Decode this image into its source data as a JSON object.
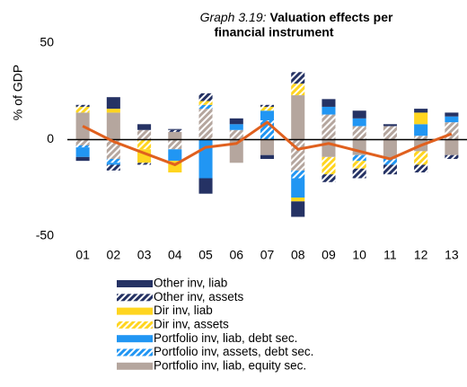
{
  "chart_data": {
    "type": "stacked_bar_line",
    "title_prefix": "Graph 3.19:",
    "title": "Valuation effects per financial instrument",
    "y_label": "% of GDP",
    "categories": [
      "01",
      "02",
      "03",
      "04",
      "05",
      "06",
      "07",
      "08",
      "09",
      "10",
      "11",
      "12",
      "13"
    ],
    "ylim": [
      -50,
      50
    ],
    "yticks": [
      -50,
      0,
      50
    ],
    "series": [
      {
        "color": "#b5a69e",
        "hatch": false,
        "values": [
          14,
          14,
          0,
          4,
          0,
          -12,
          -8,
          23,
          -9,
          -8,
          -10,
          -6,
          -8
        ]
      },
      {
        "color": "#b5a69e",
        "hatch": true,
        "values": [
          -3,
          -10,
          5,
          -5,
          16,
          5,
          0,
          -16,
          13,
          7,
          7,
          2,
          9
        ]
      },
      {
        "name": "Portfolio inv, assets, debt sec.",
        "color": "#2196f3",
        "hatch": true,
        "values": [
          -1,
          -2,
          0,
          0,
          2,
          0,
          10,
          -4,
          0,
          -3,
          -3,
          0,
          0
        ]
      },
      {
        "name": "Portfolio inv, liab, debt sec.",
        "color": "#2196f3",
        "hatch": false,
        "values": [
          -5,
          -1,
          0,
          -6,
          -20,
          3,
          5,
          -10,
          4,
          4,
          0,
          6,
          3
        ]
      },
      {
        "name": "Dir inv, assets",
        "color": "#ffd520",
        "hatch": true,
        "values": [
          3,
          0,
          -5,
          0,
          2,
          0,
          2,
          6,
          -9,
          -4,
          0,
          -7,
          0
        ]
      },
      {
        "name": "Dir inv, liab",
        "color": "#ffd520",
        "hatch": false,
        "values": [
          0,
          2,
          -7,
          -6,
          0,
          0,
          0,
          -2,
          0,
          0,
          0,
          6,
          0
        ]
      },
      {
        "name": "Other inv, assets",
        "color": "#253264",
        "hatch": true,
        "values": [
          1,
          -3,
          -1,
          1,
          4,
          0,
          1,
          6,
          -4,
          -5,
          -5,
          -4,
          -2
        ]
      },
      {
        "name": "Other inv, liab",
        "color": "#253264",
        "hatch": false,
        "values": [
          -2,
          6,
          3,
          0.5,
          -8,
          3,
          -2,
          -8,
          4,
          4,
          1,
          2,
          2
        ]
      }
    ],
    "line": {
      "color": "#e0601e",
      "values": [
        7,
        -1,
        -7,
        -13,
        -4,
        -2,
        9,
        -5,
        -2,
        -6,
        -10,
        -3,
        3
      ]
    },
    "legend_order": [
      7,
      6,
      5,
      4,
      3,
      2
    ]
  }
}
